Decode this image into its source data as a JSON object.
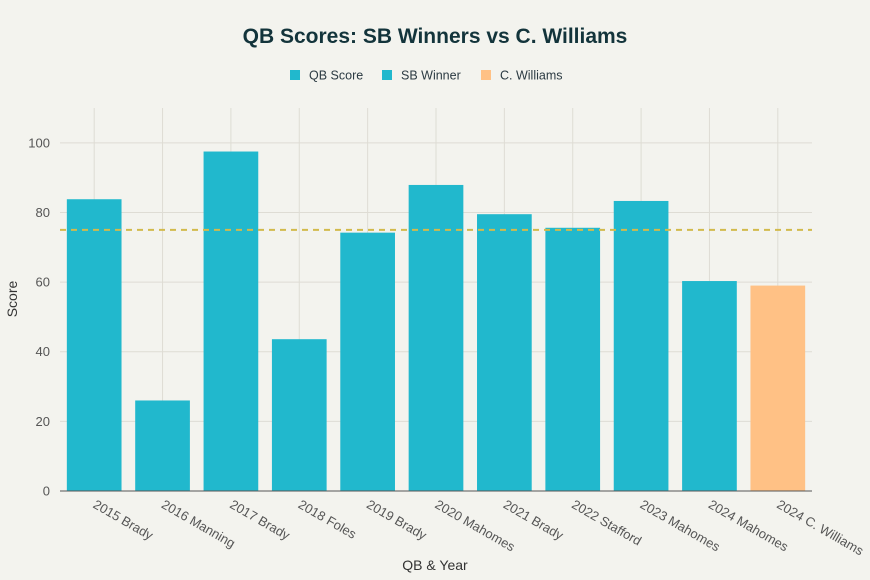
{
  "chart_data": {
    "type": "bar",
    "title": "QB Scores: SB Winners vs C. Williams",
    "xlabel": "QB & Year",
    "ylabel": "Score",
    "ylim": [
      0,
      110
    ],
    "yticks": [
      0,
      20,
      40,
      60,
      80,
      100
    ],
    "grid": true,
    "legend_position": "top-center",
    "legend": [
      {
        "label": "QB Score",
        "color": "#21b8cd"
      },
      {
        "label": "SB Winner",
        "color": "#21b8cd"
      },
      {
        "label": "C. Williams",
        "color": "#ffc185"
      }
    ],
    "categories": [
      "2015 Brady",
      "2016 Manning",
      "2017 Brady",
      "2018 Foles",
      "2019 Brady",
      "2020 Mahomes",
      "2021 Brady",
      "2022 Stafford",
      "2023 Mahomes",
      "2024 Mahomes",
      "2024 C. Williams"
    ],
    "values": [
      83.8,
      26,
      97.5,
      43.6,
      74.2,
      87.9,
      79.5,
      75.6,
      83.3,
      60.3,
      59
    ],
    "bar_colors": [
      "#21b8cd",
      "#21b8cd",
      "#21b8cd",
      "#21b8cd",
      "#21b8cd",
      "#21b8cd",
      "#21b8cd",
      "#21b8cd",
      "#21b8cd",
      "#21b8cd",
      "#ffc185"
    ],
    "reference_line": {
      "y": 75,
      "color": "#d2ba4c",
      "style": "dashed"
    }
  }
}
